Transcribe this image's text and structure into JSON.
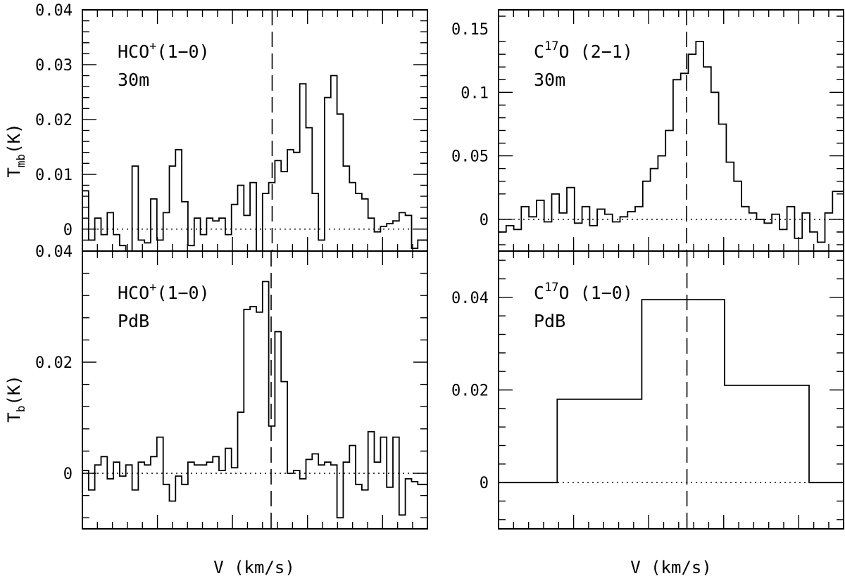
{
  "figure": {
    "xlabel": "V (km/s)",
    "ylabel_top": "T",
    "ylabel_top_sub": "mb",
    "ylabel_top_unit": "(K)",
    "ylabel_bottom": "T",
    "ylabel_bottom_sub": "b",
    "ylabel_bottom_unit": "(K)"
  },
  "chart_data": [
    {
      "type": "line",
      "step": true,
      "panel": "top-left",
      "label_line1": {
        "pre": "HCO",
        "sup": "+",
        "post": "(1−0)"
      },
      "label_line2": "30m",
      "ylim": [
        -0.004,
        0.04
      ],
      "yticks": [
        0,
        0.01,
        0.02,
        0.03,
        0.04
      ],
      "ytick_labels": [
        "0",
        "0.01",
        "0.02",
        "0.03",
        "0.04"
      ],
      "xlim": [
        0,
        100
      ],
      "dashed_line_x": 55,
      "series": [
        {
          "x": [
            0,
            1.8,
            3.6,
            5.4,
            7.2,
            9.0,
            10.8,
            12.6,
            14.4,
            16.2,
            18.0,
            19.8,
            21.6,
            23.4,
            25.2,
            27.0,
            28.8,
            30.6,
            32.4,
            34.2,
            36.0,
            37.8,
            39.6,
            41.4,
            43.2,
            45.0,
            46.8,
            48.6,
            50.4,
            52.2,
            54.0,
            55.8,
            57.6,
            59.4,
            61.2,
            63.0,
            64.8,
            66.6,
            68.4,
            70.2,
            72.0,
            73.8,
            75.6,
            77.4,
            79.2,
            81.0,
            82.8,
            84.6,
            86.4,
            88.2,
            90.0,
            91.8,
            93.6,
            95.4,
            97.2
          ],
          "y": [
            0.007,
            -0.002,
            0.002,
            -0.001,
            0.003,
            -0.001,
            -0.003,
            -0.004,
            0.0115,
            -0.002,
            -0.0025,
            0.0055,
            -0.002,
            0.003,
            0.0115,
            0.0145,
            0.005,
            -0.003,
            0.002,
            -0.001,
            0.002,
            0.0015,
            0.002,
            -0.001,
            0.0045,
            0.008,
            0.0025,
            0.0085,
            -0.0045,
            0.0065,
            0.0085,
            0.0125,
            0.0105,
            0.0145,
            0.014,
            0.0265,
            0.0185,
            0.0065,
            -0.002,
            0.024,
            0.028,
            0.021,
            0.0115,
            0.0085,
            0.0065,
            0.0055,
            0.002,
            -0.0005,
            0.0005,
            0.001,
            0.0015,
            0.003,
            0.0025,
            -0.0035,
            -0.002
          ]
        }
      ]
    },
    {
      "type": "line",
      "step": true,
      "panel": "top-right",
      "label_line1": {
        "pre": "C",
        "sup": "17",
        "post": "O (2−1)"
      },
      "label_line2": "30m",
      "ylim": [
        -0.025,
        0.165
      ],
      "yticks": [
        0,
        0.05,
        0.1,
        0.15
      ],
      "ytick_labels": [
        "0",
        "0.05",
        "0.1",
        "0.15"
      ],
      "xlim": [
        0,
        100
      ],
      "dashed_line_x": 54.5,
      "series": [
        {
          "x": [
            0,
            2.2,
            4.4,
            6.6,
            8.8,
            11.0,
            13.2,
            15.4,
            17.6,
            19.8,
            22.0,
            24.2,
            26.4,
            28.6,
            30.8,
            33.0,
            35.2,
            37.4,
            39.6,
            41.8,
            44.0,
            46.2,
            48.4,
            50.6,
            52.8,
            55.0,
            57.2,
            59.4,
            61.6,
            63.8,
            66.0,
            68.2,
            70.4,
            72.6,
            74.8,
            77.0,
            79.2,
            81.4,
            83.6,
            85.8,
            88.0,
            90.2,
            92.4,
            94.6,
            96.8
          ],
          "y": [
            -0.01,
            -0.005,
            -0.008,
            0.01,
            0.002,
            0.015,
            -0.002,
            0.02,
            0.005,
            0.025,
            -0.003,
            0.01,
            -0.005,
            0.008,
            0.004,
            -0.002,
            0.002,
            0.006,
            0.01,
            0.03,
            0.04,
            0.05,
            0.07,
            0.11,
            0.115,
            0.13,
            0.14,
            0.12,
            0.1,
            0.075,
            0.045,
            0.03,
            0.01,
            0.005,
            0.0,
            -0.003,
            0.004,
            -0.008,
            0.01,
            -0.015,
            0.005,
            -0.01,
            -0.018,
            0.005,
            0.022
          ]
        }
      ]
    },
    {
      "type": "line",
      "step": true,
      "panel": "bottom-left",
      "label_line1": {
        "pre": "HCO",
        "sup": "+",
        "post": "(1−0)"
      },
      "label_line2": "PdB",
      "ylim": [
        -0.01,
        0.04
      ],
      "yticks": [
        0,
        0.02,
        0.04
      ],
      "ytick_labels": [
        "0",
        "0.02",
        "0.04"
      ],
      "xlim": [
        0,
        100
      ],
      "dashed_line_x": 54.7,
      "series": [
        {
          "x": [
            0,
            1.8,
            3.6,
            5.4,
            7.2,
            9.0,
            10.8,
            12.6,
            14.4,
            16.2,
            18.0,
            19.8,
            21.6,
            23.4,
            25.2,
            27.0,
            28.8,
            30.6,
            32.4,
            34.2,
            36.0,
            37.8,
            39.6,
            41.4,
            43.2,
            45.0,
            46.8,
            48.6,
            50.4,
            52.2,
            54.0,
            55.8,
            57.6,
            59.4,
            61.2,
            63.0,
            64.8,
            66.6,
            68.4,
            70.2,
            72.0,
            73.8,
            75.6,
            77.4,
            79.2,
            81.0,
            82.8,
            84.6,
            86.4,
            88.2,
            90.0,
            91.8,
            93.6,
            95.4,
            97.2
          ],
          "y": [
            0.0005,
            -0.003,
            0.0015,
            0.003,
            -0.001,
            0.002,
            -0.0005,
            0.0015,
            -0.003,
            0.002,
            0.0015,
            0.003,
            0.0065,
            -0.002,
            -0.005,
            -0.0005,
            -0.002,
            0.002,
            0.0015,
            0.0015,
            0.002,
            0.003,
            0.0005,
            0.0045,
            0.001,
            0.011,
            0.0295,
            0.03,
            0.029,
            0.0345,
            0.0085,
            0.0255,
            0.0165,
            0.0,
            0.0005,
            -0.001,
            0.0025,
            0.0035,
            0.0015,
            0.002,
            0.0015,
            -0.008,
            0.002,
            0.005,
            -0.002,
            -0.003,
            0.0075,
            0.002,
            0.0065,
            -0.0025,
            0.0065,
            -0.0075,
            -0.001,
            -0.0015,
            -0.002
          ]
        }
      ]
    },
    {
      "type": "line",
      "step": true,
      "panel": "bottom-right",
      "label_line1": {
        "pre": "C",
        "sup": "17",
        "post": "O (1−0)"
      },
      "label_line2": "PdB",
      "ylim": [
        -0.01,
        0.05
      ],
      "yticks": [
        0,
        0.02,
        0.04
      ],
      "ytick_labels": [
        "0",
        "0.02",
        "0.04"
      ],
      "xlim": [
        0,
        100
      ],
      "dashed_line_x": 54.6,
      "series": [
        {
          "x": [
            0,
            17,
            41.5,
            65.5,
            90,
            100
          ],
          "y": [
            0.0,
            0.018,
            0.0395,
            0.021,
            0.0,
            0.0
          ]
        }
      ]
    }
  ]
}
